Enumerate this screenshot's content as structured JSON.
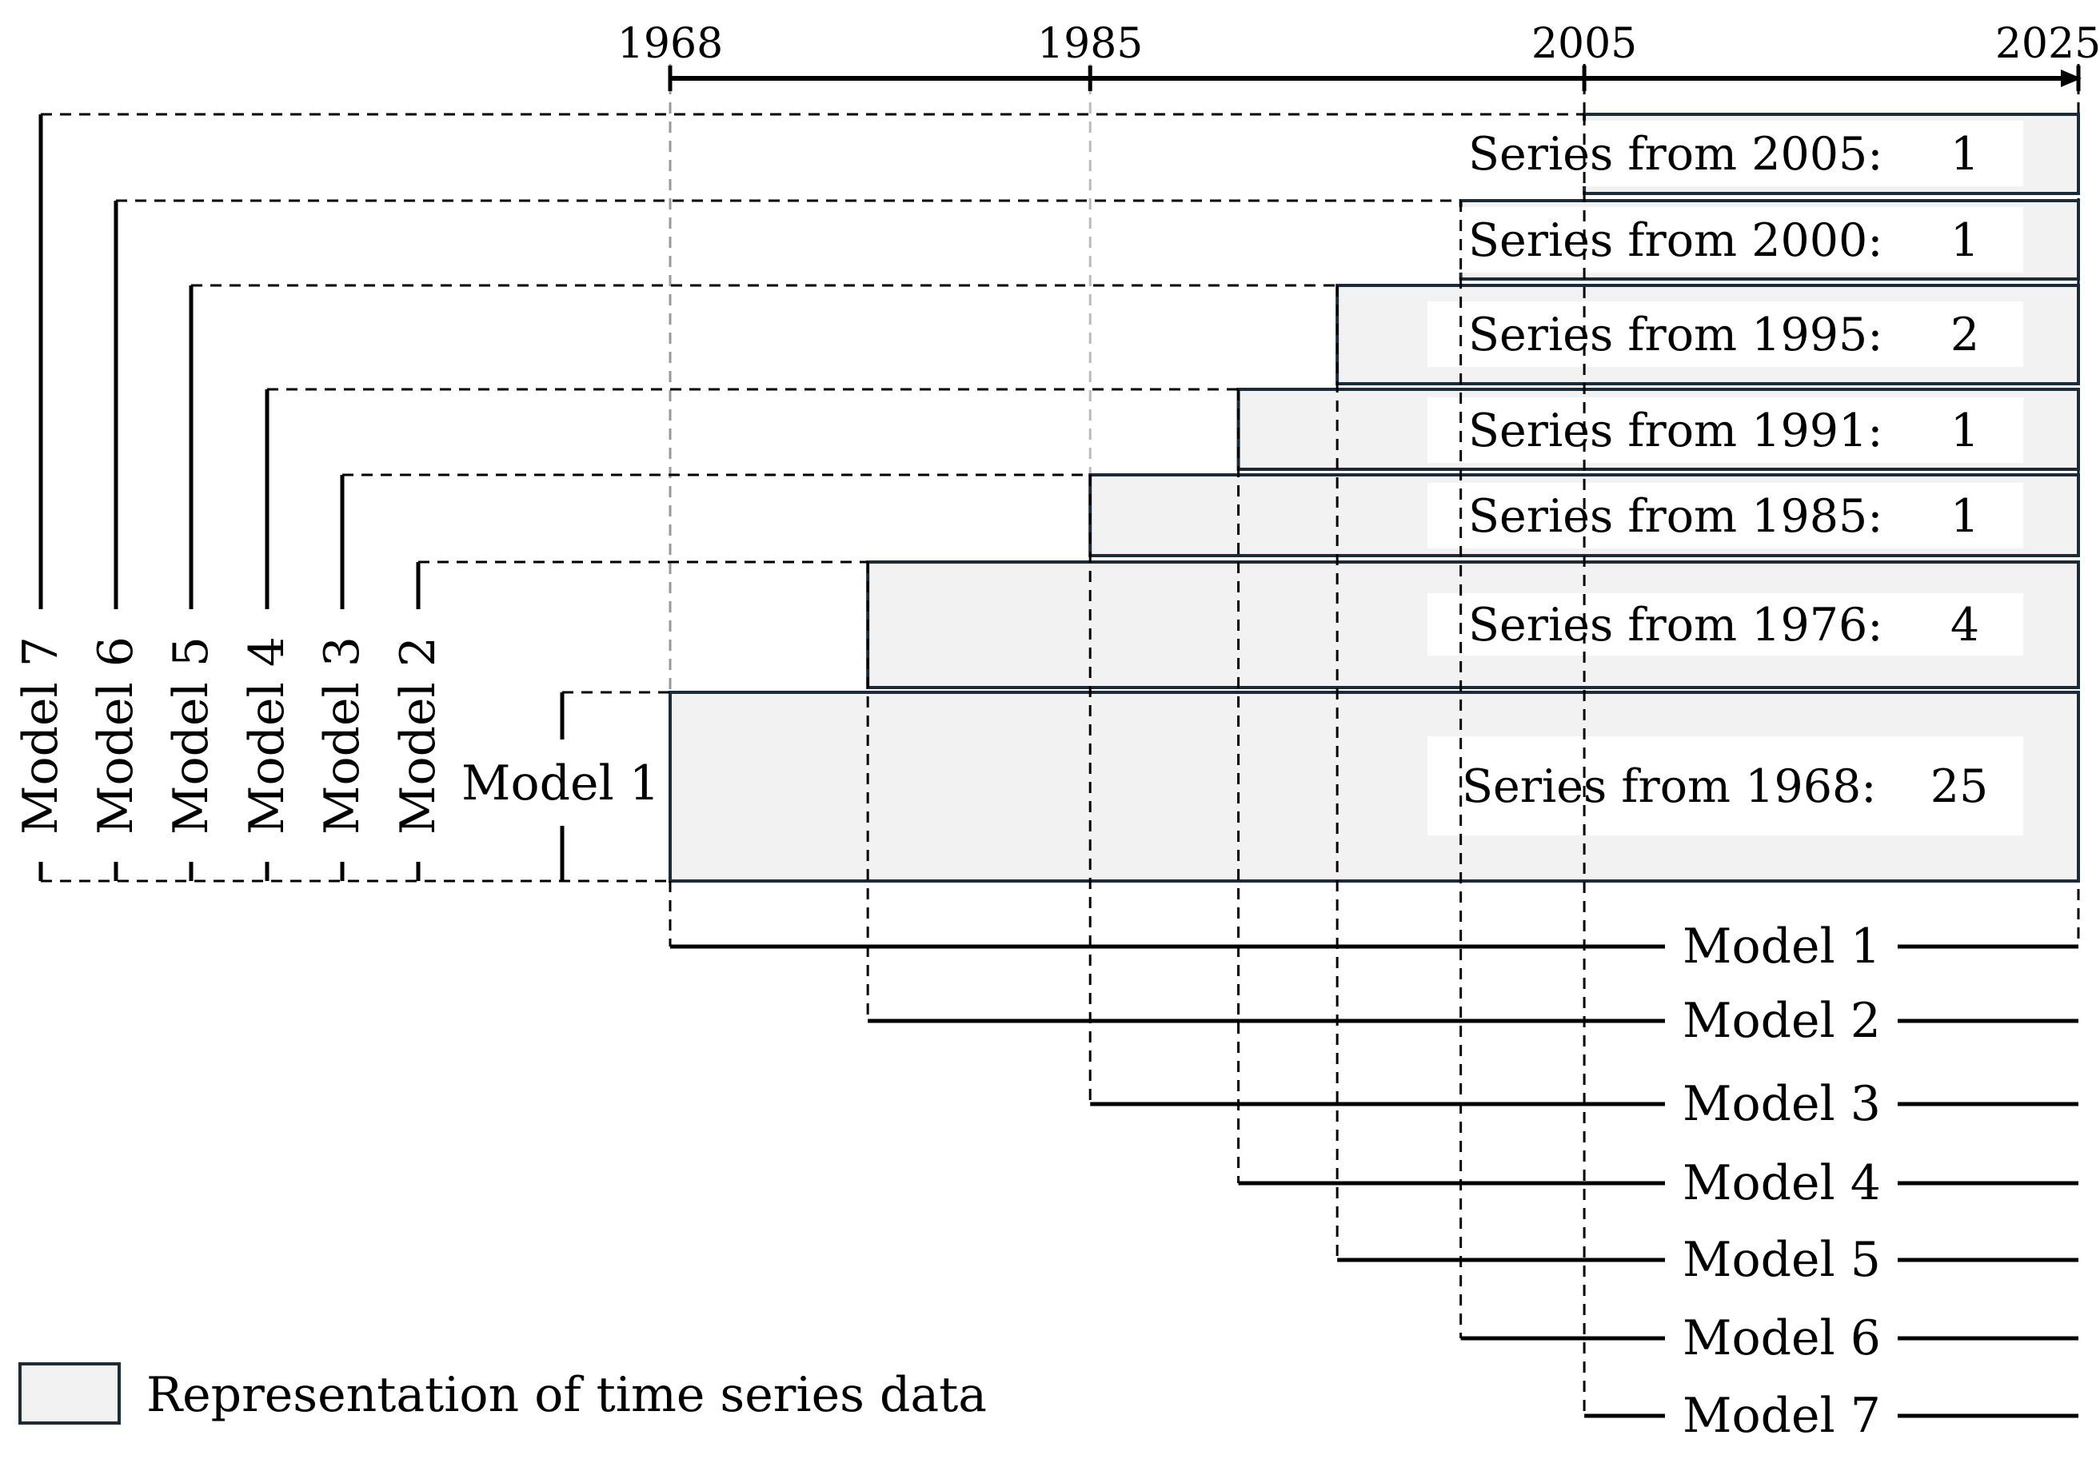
{
  "timeline": {
    "ticks": [
      1968,
      1985,
      2005,
      2025
    ],
    "range": [
      1968,
      2025
    ]
  },
  "series": [
    {
      "start": 1968,
      "label": "Series from 1968:",
      "count": "25",
      "model": "Model 1"
    },
    {
      "start": 1976,
      "label": "Series from 1976:",
      "count": "4",
      "model": "Model 2"
    },
    {
      "start": 1985,
      "label": "Series from 1985:",
      "count": "1",
      "model": "Model 3"
    },
    {
      "start": 1991,
      "label": "Series from 1991:",
      "count": "1",
      "model": "Model 4"
    },
    {
      "start": 1995,
      "label": "Series from 1995:",
      "count": "2",
      "model": "Model 5"
    },
    {
      "start": 2000,
      "label": "Series from 2000:",
      "count": "1",
      "model": "Model 6"
    },
    {
      "start": 2005,
      "label": "Series from 2005:",
      "count": "1",
      "model": "Model 7"
    }
  ],
  "legend": {
    "label": "Representation of time series data"
  },
  "colors": {
    "box_fill": "#f2f2f2",
    "box_stroke": "#1c2b3a",
    "line": "#000000",
    "guide_1985": "#bbbbbb"
  }
}
